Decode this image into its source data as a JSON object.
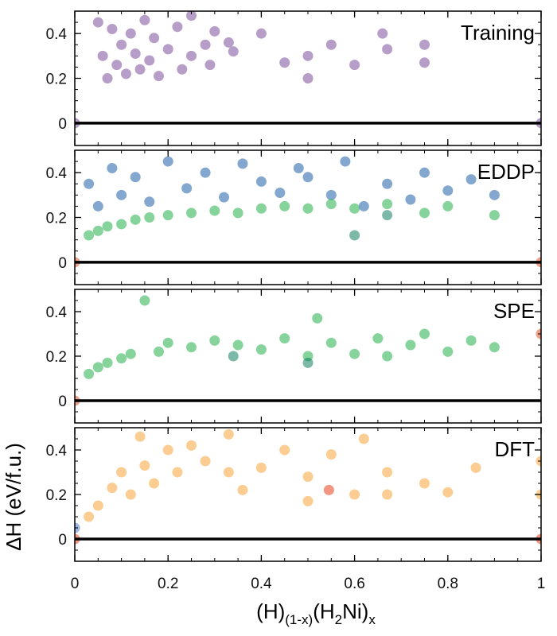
{
  "chart_data": {
    "type": "scatter",
    "figure": "stacked panels sharing x axis",
    "xlabel_parts": [
      "(H)",
      "(1-x)",
      "(H",
      "2",
      "Ni)",
      "x"
    ],
    "ylabel": "ΔH (eV/f.u.)",
    "xlim": [
      0,
      1
    ],
    "ylim": [
      -0.1,
      0.5
    ],
    "xticks": [
      0,
      0.2,
      0.4,
      0.6,
      0.8,
      1
    ],
    "xtick_labels": [
      "0",
      "0.2",
      "0.4",
      "0.6",
      "0.8",
      "1"
    ],
    "yticks": [
      0,
      0.2,
      0.4
    ],
    "ytick_labels": [
      "0",
      "0.2",
      "0.4"
    ],
    "hull_line_y": 0,
    "panels": [
      {
        "label": "Training",
        "series": [
          {
            "color": "#7b4f9d",
            "points": [
              [
                0.05,
                0.45
              ],
              [
                0.06,
                0.3
              ],
              [
                0.07,
                0.2
              ],
              [
                0.08,
                0.42
              ],
              [
                0.09,
                0.26
              ],
              [
                0.1,
                0.35
              ],
              [
                0.11,
                0.22
              ],
              [
                0.12,
                0.4
              ],
              [
                0.13,
                0.31
              ],
              [
                0.14,
                0.24
              ],
              [
                0.15,
                0.46
              ],
              [
                0.16,
                0.28
              ],
              [
                0.17,
                0.38
              ],
              [
                0.18,
                0.21
              ],
              [
                0.2,
                0.33
              ],
              [
                0.22,
                0.43
              ],
              [
                0.23,
                0.24
              ],
              [
                0.25,
                0.3
              ],
              [
                0.25,
                0.48
              ],
              [
                0.28,
                0.35
              ],
              [
                0.29,
                0.26
              ],
              [
                0.3,
                0.41
              ],
              [
                0.33,
                0.36
              ],
              [
                0.34,
                0.32
              ],
              [
                0.4,
                0.4
              ],
              [
                0.45,
                0.27
              ],
              [
                0.5,
                0.3
              ],
              [
                0.5,
                0.2
              ],
              [
                0.55,
                0.35
              ],
              [
                0.6,
                0.26
              ],
              [
                0.66,
                0.4
              ],
              [
                0.67,
                0.33
              ],
              [
                0.75,
                0.35
              ],
              [
                0.75,
                0.27
              ],
              [
                0.0,
                0.0
              ],
              [
                1.0,
                0.0
              ]
            ]
          }
        ]
      },
      {
        "label": "EDDP",
        "series": [
          {
            "color": "#1f5fa8",
            "points": [
              [
                0.03,
                0.35
              ],
              [
                0.05,
                0.25
              ],
              [
                0.08,
                0.42
              ],
              [
                0.1,
                0.3
              ],
              [
                0.13,
                0.38
              ],
              [
                0.16,
                0.27
              ],
              [
                0.2,
                0.45
              ],
              [
                0.24,
                0.33
              ],
              [
                0.28,
                0.4
              ],
              [
                0.32,
                0.29
              ],
              [
                0.36,
                0.44
              ],
              [
                0.4,
                0.36
              ],
              [
                0.44,
                0.31
              ],
              [
                0.48,
                0.42
              ],
              [
                0.5,
                0.38
              ],
              [
                0.55,
                0.3
              ],
              [
                0.58,
                0.45
              ],
              [
                0.62,
                0.25
              ],
              [
                0.67,
                0.35
              ],
              [
                0.72,
                0.28
              ],
              [
                0.75,
                0.4
              ],
              [
                0.8,
                0.32
              ],
              [
                0.85,
                0.37
              ],
              [
                0.9,
                0.3
              ]
            ]
          },
          {
            "color": "#22b04b",
            "points": [
              [
                0.03,
                0.12
              ],
              [
                0.05,
                0.14
              ],
              [
                0.07,
                0.16
              ],
              [
                0.1,
                0.17
              ],
              [
                0.13,
                0.19
              ],
              [
                0.16,
                0.2
              ],
              [
                0.2,
                0.21
              ],
              [
                0.25,
                0.22
              ],
              [
                0.3,
                0.23
              ],
              [
                0.35,
                0.22
              ],
              [
                0.4,
                0.24
              ],
              [
                0.45,
                0.25
              ],
              [
                0.5,
                0.24
              ],
              [
                0.55,
                0.26
              ],
              [
                0.6,
                0.24
              ],
              [
                0.67,
                0.26
              ],
              [
                0.75,
                0.22
              ],
              [
                0.8,
                0.25
              ],
              [
                0.9,
                0.21
              ]
            ]
          },
          {
            "color": "#118060",
            "points": [
              [
                0.6,
                0.12
              ],
              [
                0.67,
                0.21
              ]
            ]
          },
          {
            "color": "#e0502a",
            "points": [
              [
                0.0,
                0.0
              ],
              [
                1.0,
                0.0
              ]
            ]
          }
        ]
      },
      {
        "label": "SPE",
        "series": [
          {
            "color": "#22b04b",
            "points": [
              [
                0.03,
                0.12
              ],
              [
                0.05,
                0.15
              ],
              [
                0.07,
                0.17
              ],
              [
                0.1,
                0.19
              ],
              [
                0.12,
                0.21
              ],
              [
                0.15,
                0.45
              ],
              [
                0.18,
                0.22
              ],
              [
                0.2,
                0.26
              ],
              [
                0.25,
                0.24
              ],
              [
                0.3,
                0.27
              ],
              [
                0.35,
                0.25
              ],
              [
                0.4,
                0.23
              ],
              [
                0.45,
                0.28
              ],
              [
                0.5,
                0.2
              ],
              [
                0.52,
                0.37
              ],
              [
                0.55,
                0.26
              ],
              [
                0.6,
                0.21
              ],
              [
                0.65,
                0.28
              ],
              [
                0.67,
                0.2
              ],
              [
                0.72,
                0.25
              ],
              [
                0.75,
                0.3
              ],
              [
                0.8,
                0.22
              ],
              [
                0.85,
                0.27
              ],
              [
                0.9,
                0.24
              ]
            ]
          },
          {
            "color": "#118060",
            "points": [
              [
                0.5,
                0.17
              ],
              [
                0.34,
                0.2
              ]
            ]
          },
          {
            "color": "#e0502a",
            "points": [
              [
                0.0,
                0.0
              ],
              [
                1.0,
                0.3
              ]
            ]
          }
        ]
      },
      {
        "label": "DFT",
        "series": [
          {
            "color": "#f7a43b",
            "points": [
              [
                0.03,
                0.1
              ],
              [
                0.05,
                0.15
              ],
              [
                0.08,
                0.23
              ],
              [
                0.1,
                0.3
              ],
              [
                0.12,
                0.2
              ],
              [
                0.14,
                0.46
              ],
              [
                0.15,
                0.33
              ],
              [
                0.17,
                0.25
              ],
              [
                0.2,
                0.4
              ],
              [
                0.22,
                0.3
              ],
              [
                0.25,
                0.42
              ],
              [
                0.28,
                0.35
              ],
              [
                0.33,
                0.47
              ],
              [
                0.33,
                0.3
              ],
              [
                0.36,
                0.22
              ],
              [
                0.4,
                0.32
              ],
              [
                0.45,
                0.4
              ],
              [
                0.5,
                0.28
              ],
              [
                0.5,
                0.17
              ],
              [
                0.55,
                0.38
              ],
              [
                0.6,
                0.2
              ],
              [
                0.62,
                0.45
              ],
              [
                0.67,
                0.3
              ],
              [
                0.67,
                0.2
              ],
              [
                0.75,
                0.25
              ],
              [
                0.8,
                0.21
              ],
              [
                0.86,
                0.32
              ],
              [
                1.0,
                0.35
              ],
              [
                1.0,
                0.2
              ]
            ]
          },
          {
            "color": "#e8401c",
            "points": [
              [
                0.545,
                0.22
              ],
              [
                0.0,
                0.0
              ],
              [
                1.0,
                0.0
              ]
            ]
          },
          {
            "color": "#4a78c8",
            "points": [
              [
                0.0,
                0.05
              ]
            ]
          }
        ]
      }
    ]
  }
}
